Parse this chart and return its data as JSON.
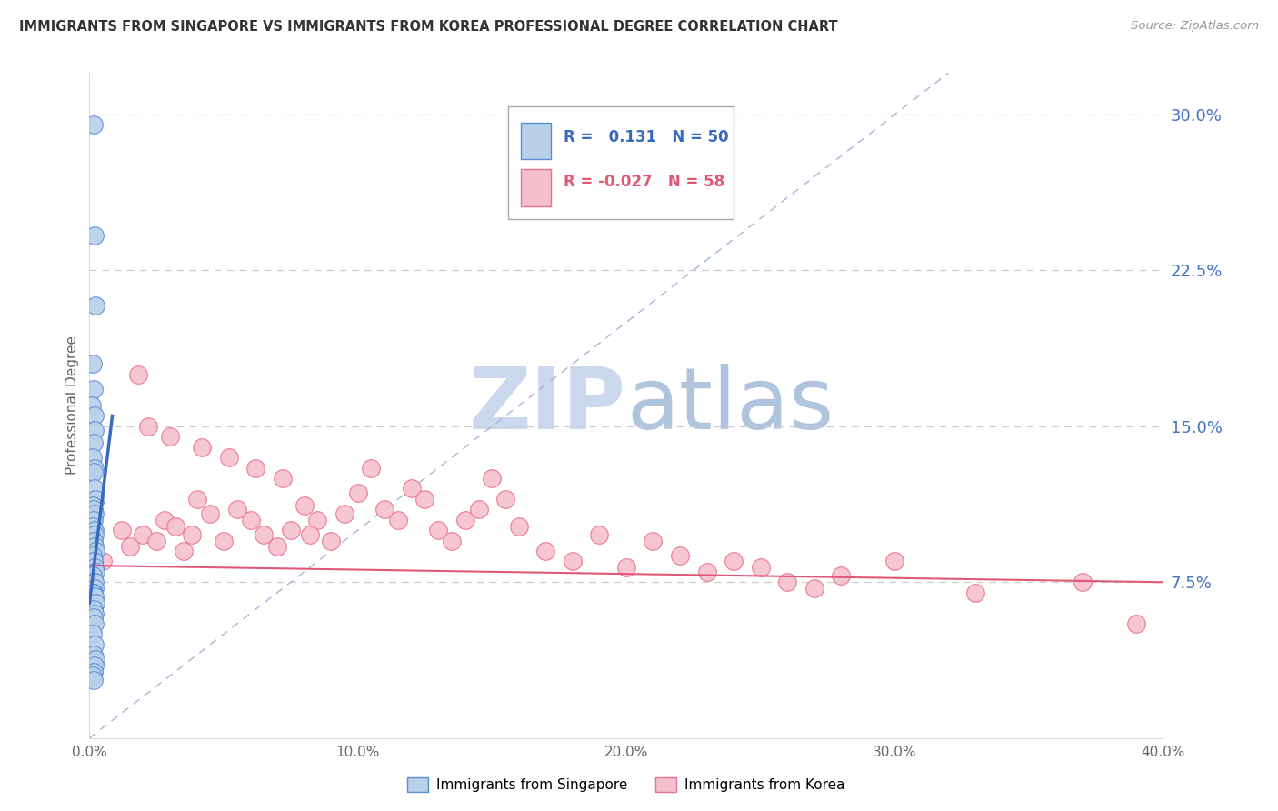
{
  "title": "IMMIGRANTS FROM SINGAPORE VS IMMIGRANTS FROM KOREA PROFESSIONAL DEGREE CORRELATION CHART",
  "source": "Source: ZipAtlas.com",
  "ylabel": "Professional Degree",
  "xlim": [
    0.0,
    40.0
  ],
  "ylim": [
    0.0,
    32.0
  ],
  "xticks": [
    0.0,
    10.0,
    20.0,
    30.0,
    40.0
  ],
  "yticks_right": [
    7.5,
    15.0,
    22.5,
    30.0
  ],
  "singapore_r": 0.131,
  "singapore_n": 50,
  "korea_r": -0.027,
  "korea_n": 58,
  "color_singapore_fill": "#b8d0e8",
  "color_korea_fill": "#f5c0cc",
  "color_singapore_edge": "#5b8dd9",
  "color_korea_edge": "#e87090",
  "color_singapore_line": "#3a6abf",
  "color_korea_line": "#e05878",
  "color_diag_line": "#a0b8d8",
  "color_right_axis": "#4472c4",
  "watermark_zip": "#c8d8ee",
  "watermark_atlas": "#b0c8e0",
  "sg_x": [
    0.15,
    0.18,
    0.22,
    0.12,
    0.15,
    0.1,
    0.18,
    0.2,
    0.15,
    0.12,
    0.2,
    0.15,
    0.18,
    0.22,
    0.12,
    0.15,
    0.18,
    0.15,
    0.12,
    0.18,
    0.2,
    0.15,
    0.18,
    0.22,
    0.12,
    0.15,
    0.15,
    0.2,
    0.18,
    0.22,
    0.12,
    0.15,
    0.18,
    0.2,
    0.15,
    0.12,
    0.18,
    0.22,
    0.15,
    0.18,
    0.15,
    0.2,
    0.12,
    0.18,
    0.15,
    0.22,
    0.18,
    0.15,
    0.12,
    0.15
  ],
  "sg_y": [
    29.5,
    24.2,
    20.8,
    18.0,
    16.8,
    16.0,
    15.5,
    14.8,
    14.2,
    13.5,
    13.0,
    12.8,
    12.0,
    11.5,
    11.2,
    11.0,
    10.8,
    10.5,
    10.2,
    10.0,
    9.8,
    9.5,
    9.2,
    9.0,
    8.8,
    8.5,
    8.5,
    8.2,
    8.0,
    8.0,
    7.8,
    7.5,
    7.5,
    7.2,
    7.0,
    7.0,
    6.8,
    6.5,
    6.2,
    6.0,
    5.8,
    5.5,
    5.0,
    4.5,
    4.0,
    3.8,
    3.5,
    3.2,
    3.0,
    2.8
  ],
  "kr_x": [
    0.5,
    1.2,
    1.5,
    2.0,
    2.5,
    2.8,
    3.2,
    3.5,
    3.8,
    4.0,
    4.5,
    5.0,
    5.5,
    6.0,
    6.5,
    7.0,
    7.5,
    8.0,
    8.5,
    9.0,
    9.5,
    10.0,
    10.5,
    11.0,
    11.5,
    12.0,
    12.5,
    13.0,
    13.5,
    14.0,
    14.5,
    15.0,
    15.5,
    16.0,
    17.0,
    18.0,
    19.0,
    20.0,
    21.0,
    22.0,
    23.0,
    24.0,
    25.0,
    26.0,
    27.0,
    28.0,
    30.0,
    33.0,
    37.0,
    39.0,
    1.8,
    2.2,
    3.0,
    4.2,
    5.2,
    6.2,
    7.2,
    8.2
  ],
  "kr_y": [
    8.5,
    10.0,
    9.2,
    9.8,
    9.5,
    10.5,
    10.2,
    9.0,
    9.8,
    11.5,
    10.8,
    9.5,
    11.0,
    10.5,
    9.8,
    9.2,
    10.0,
    11.2,
    10.5,
    9.5,
    10.8,
    11.8,
    13.0,
    11.0,
    10.5,
    12.0,
    11.5,
    10.0,
    9.5,
    10.5,
    11.0,
    12.5,
    11.5,
    10.2,
    9.0,
    8.5,
    9.8,
    8.2,
    9.5,
    8.8,
    8.0,
    8.5,
    8.2,
    7.5,
    7.2,
    7.8,
    8.5,
    7.0,
    7.5,
    5.5,
    17.5,
    15.0,
    14.5,
    14.0,
    13.5,
    13.0,
    12.5,
    9.8
  ]
}
